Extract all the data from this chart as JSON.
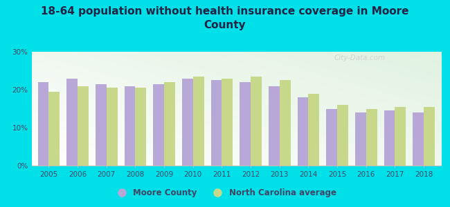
{
  "title": "18-64 population without health insurance coverage in Moore\nCounty",
  "years": [
    2005,
    2006,
    2007,
    2008,
    2009,
    2010,
    2011,
    2012,
    2013,
    2014,
    2015,
    2016,
    2017,
    2018
  ],
  "moore_county": [
    22.0,
    23.0,
    21.5,
    21.0,
    21.5,
    23.0,
    22.5,
    22.0,
    21.0,
    18.0,
    15.0,
    14.0,
    14.5,
    14.0
  ],
  "nc_average": [
    19.5,
    21.0,
    20.5,
    20.5,
    22.0,
    23.5,
    23.0,
    23.5,
    22.5,
    19.0,
    16.0,
    15.0,
    15.5,
    15.5
  ],
  "bar_color_moore": "#b8a8d8",
  "bar_color_nc": "#c8d88a",
  "background_outer": "#00e0e8",
  "title_fontsize": 11,
  "ylim": [
    0,
    30
  ],
  "yticks": [
    0,
    10,
    20,
    30
  ],
  "ytick_labels": [
    "0%",
    "10%",
    "20%",
    "30%"
  ],
  "legend_moore": "Moore County",
  "legend_nc": "North Carolina average",
  "watermark": "City-Data.com",
  "title_color": "#222244"
}
